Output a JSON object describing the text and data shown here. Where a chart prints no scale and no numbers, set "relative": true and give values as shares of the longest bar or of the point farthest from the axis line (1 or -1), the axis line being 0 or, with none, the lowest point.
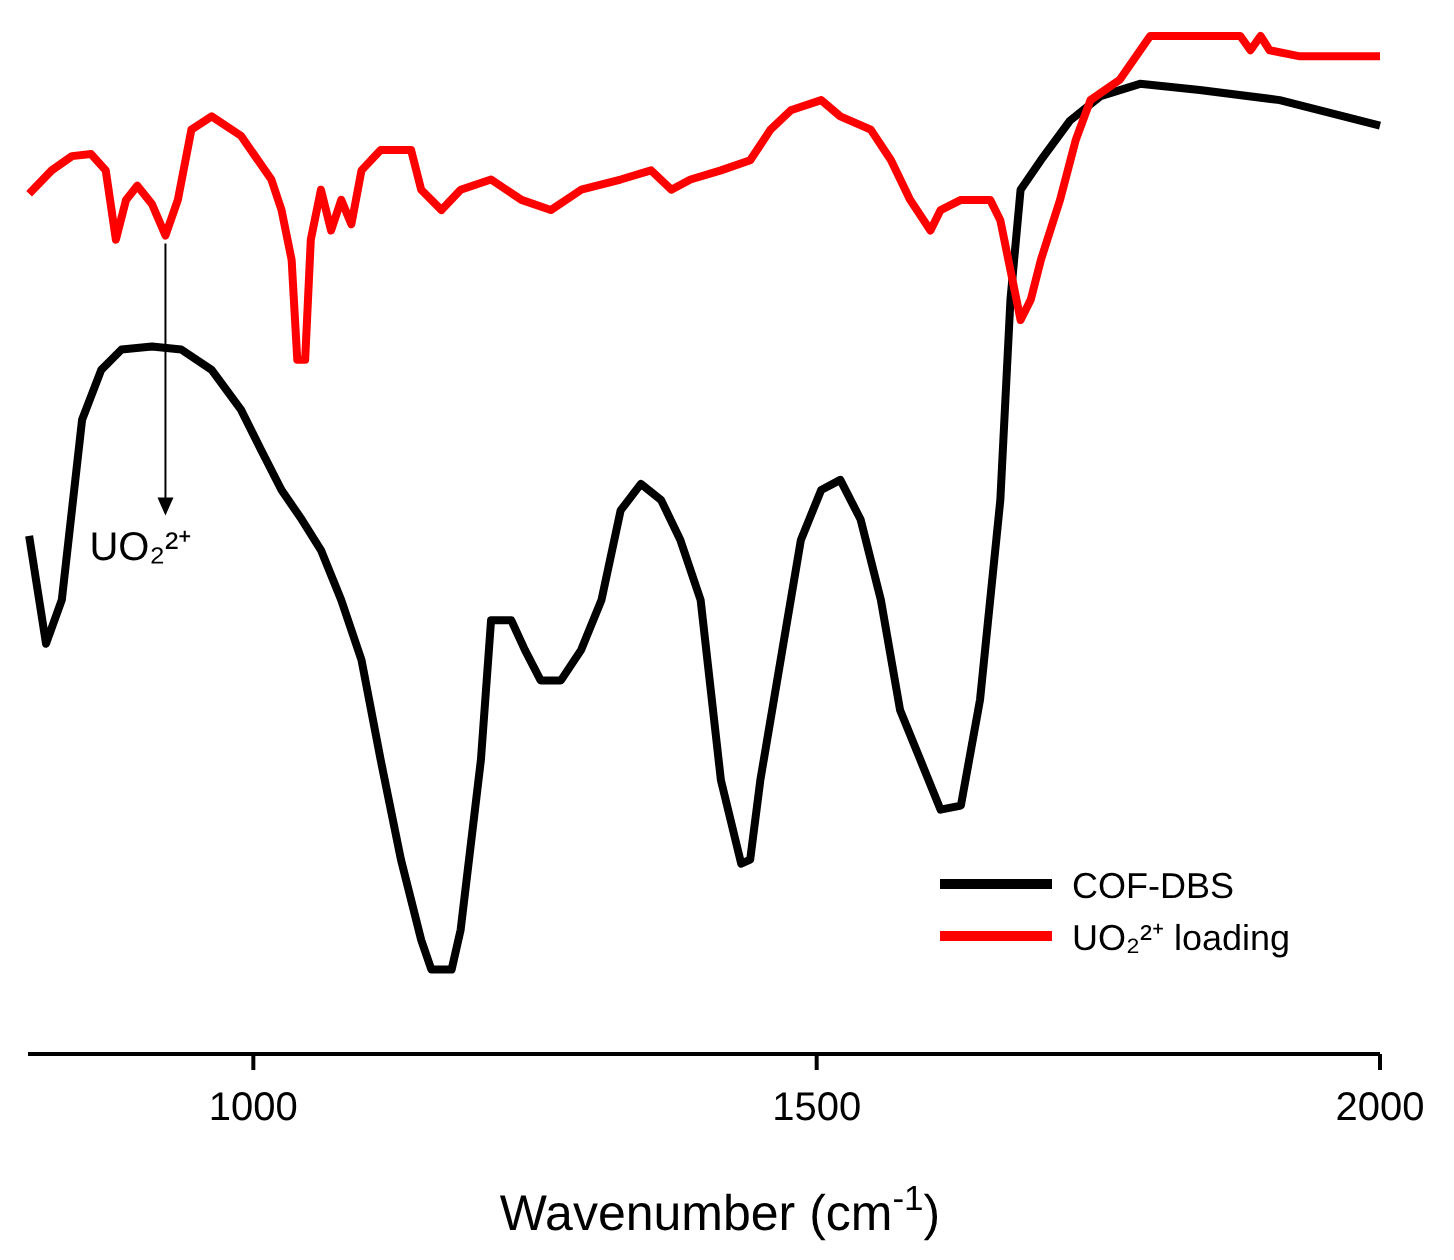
{
  "chart_data": {
    "type": "line",
    "relative": true,
    "xlabel": "Wavenumber (cm$^{-1}$)",
    "xlim": [
      800,
      2000
    ],
    "xticks": [
      1000,
      1500,
      2000
    ],
    "legend": "bottom right",
    "annotations": [
      {
        "text": "UO₂²⁺",
        "x": 922,
        "y": 0.804
      }
    ],
    "series": [
      {
        "name": "COF-DBS",
        "color": "#000000",
        "x": [
          801,
          816,
          830,
          848,
          865,
          883,
          910,
          936,
          963,
          989,
          1007,
          1025,
          1043,
          1060,
          1078,
          1096,
          1113,
          1131,
          1149,
          1158,
          1176,
          1184,
          1202,
          1211,
          1229,
          1241,
          1255,
          1273,
          1291,
          1309,
          1326,
          1344,
          1362,
          1379,
          1397,
          1415,
          1433,
          1441,
          1450,
          1468,
          1486,
          1504,
          1521,
          1539,
          1557,
          1574,
          1592,
          1610,
          1628,
          1645,
          1663,
          1672,
          1681,
          1699,
          1725,
          1752,
          1787,
          1840,
          1911,
          2000
        ],
        "values": [
          0.509,
          0.403,
          0.446,
          0.623,
          0.672,
          0.692,
          0.695,
          0.692,
          0.672,
          0.633,
          0.593,
          0.554,
          0.525,
          0.495,
          0.446,
          0.387,
          0.289,
          0.191,
          0.112,
          0.083,
          0.083,
          0.122,
          0.289,
          0.426,
          0.426,
          0.397,
          0.367,
          0.367,
          0.397,
          0.446,
          0.534,
          0.56,
          0.544,
          0.505,
          0.446,
          0.269,
          0.187,
          0.191,
          0.269,
          0.387,
          0.505,
          0.554,
          0.564,
          0.525,
          0.446,
          0.338,
          0.289,
          0.24,
          0.244,
          0.348,
          0.544,
          0.741,
          0.849,
          0.878,
          0.917,
          0.941,
          0.953,
          0.947,
          0.937,
          0.912
        ]
      },
      {
        "name": "UO₂²⁺ loading",
        "color": "#ff0000",
        "x": [
          801,
          821,
          839,
          856,
          869,
          878,
          887,
          897,
          910,
          922,
          933,
          945,
          963,
          989,
          1016,
          1025,
          1034,
          1039,
          1046,
          1051,
          1060,
          1069,
          1078,
          1087,
          1096,
          1113,
          1140,
          1149,
          1167,
          1184,
          1211,
          1238,
          1264,
          1291,
          1326,
          1353,
          1371,
          1388,
          1415,
          1441,
          1459,
          1477,
          1504,
          1521,
          1548,
          1566,
          1583,
          1601,
          1610,
          1628,
          1654,
          1663,
          1672,
          1681,
          1690,
          1699,
          1716,
          1730,
          1743,
          1769,
          1796,
          1840,
          1876,
          1885,
          1894,
          1902,
          1929,
          2000
        ],
        "values": [
          0.845,
          0.868,
          0.882,
          0.884,
          0.868,
          0.8,
          0.839,
          0.853,
          0.835,
          0.804,
          0.839,
          0.908,
          0.921,
          0.902,
          0.859,
          0.829,
          0.78,
          0.682,
          0.682,
          0.8,
          0.849,
          0.809,
          0.839,
          0.815,
          0.868,
          0.888,
          0.888,
          0.849,
          0.829,
          0.849,
          0.859,
          0.839,
          0.829,
          0.849,
          0.859,
          0.868,
          0.849,
          0.859,
          0.868,
          0.878,
          0.908,
          0.927,
          0.937,
          0.921,
          0.908,
          0.878,
          0.839,
          0.809,
          0.829,
          0.839,
          0.839,
          0.819,
          0.77,
          0.721,
          0.741,
          0.78,
          0.839,
          0.898,
          0.937,
          0.957,
          1.0,
          1.0,
          1.0,
          0.986,
          1.0,
          0.986,
          0.98,
          0.98
        ]
      }
    ]
  }
}
